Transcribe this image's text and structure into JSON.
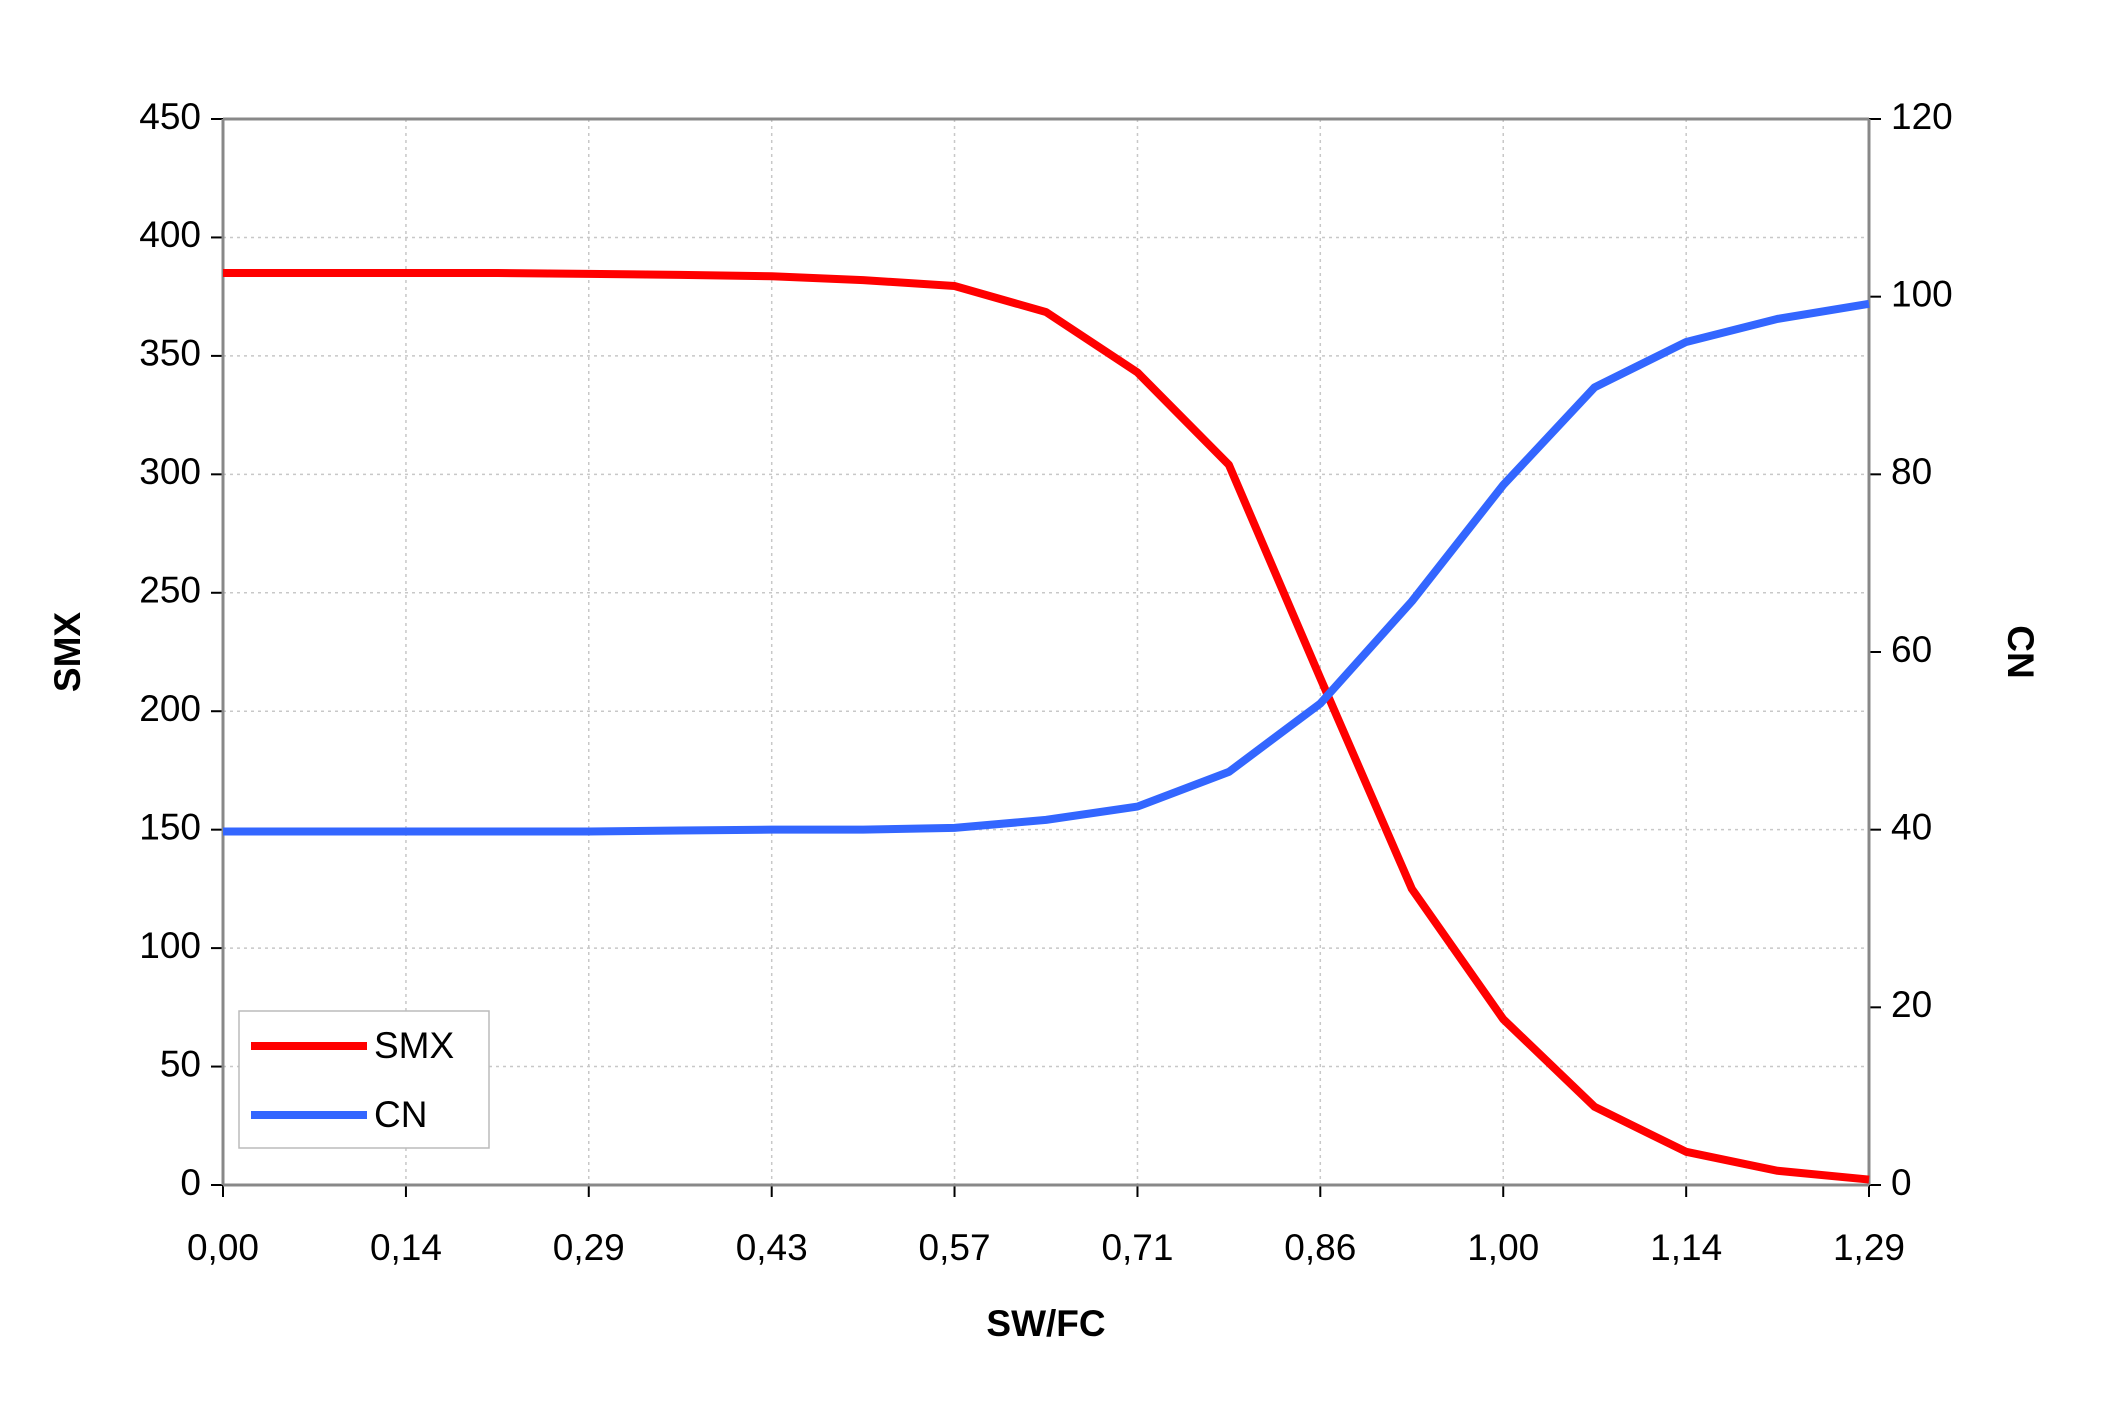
{
  "chart_data": {
    "type": "line",
    "x_label": "SW/FC",
    "y_label": "SMX",
    "y2_label": "CN",
    "x": [
      0,
      0.0714,
      0.1429,
      0.2143,
      0.2857,
      0.3571,
      0.4286,
      0.5,
      0.5714,
      0.6429,
      0.7143,
      0.7857,
      0.8571,
      0.9286,
      1.0,
      1.0714,
      1.1429,
      1.2143,
      1.2857
    ],
    "series": [
      {
        "name": "SMX",
        "color": "#ff0000",
        "values": [
          385,
          385,
          385,
          385,
          384.6,
          384.2,
          383.6,
          382,
          379.5,
          368.5,
          343,
          304,
          214,
          125,
          70,
          33,
          14,
          6,
          2.3
        ]
      },
      {
        "name": "CN",
        "color": "#3366ff",
        "axis": "y2",
        "values": [
          39.8,
          39.8,
          39.8,
          39.8,
          39.8,
          39.9,
          40,
          40,
          40.2,
          41.1,
          42.6,
          46.5,
          54.2,
          65.7,
          78.8,
          89.8,
          94.9,
          97.5,
          99.2
        ]
      }
    ],
    "xlim": [
      0,
      1.2857
    ],
    "xticks": [
      {
        "value": 0,
        "label": "0,00"
      },
      {
        "value": 0.1429,
        "label": "0,14"
      },
      {
        "value": 0.2857,
        "label": "0,29"
      },
      {
        "value": 0.4286,
        "label": "0,43"
      },
      {
        "value": 0.5714,
        "label": "0,57"
      },
      {
        "value": 0.7143,
        "label": "0,71"
      },
      {
        "value": 0.8571,
        "label": "0,86"
      },
      {
        "value": 1.0,
        "label": "1,00"
      },
      {
        "value": 1.1429,
        "label": "1,14"
      },
      {
        "value": 1.2857,
        "label": "1,29"
      }
    ],
    "ylim": [
      0,
      450
    ],
    "yticks": [
      0,
      50,
      100,
      150,
      200,
      250,
      300,
      350,
      400,
      450
    ],
    "y2lim": [
      0,
      120
    ],
    "y2ticks": [
      0,
      20,
      40,
      60,
      80,
      100,
      120
    ],
    "grid": true,
    "legend": "lower left"
  }
}
